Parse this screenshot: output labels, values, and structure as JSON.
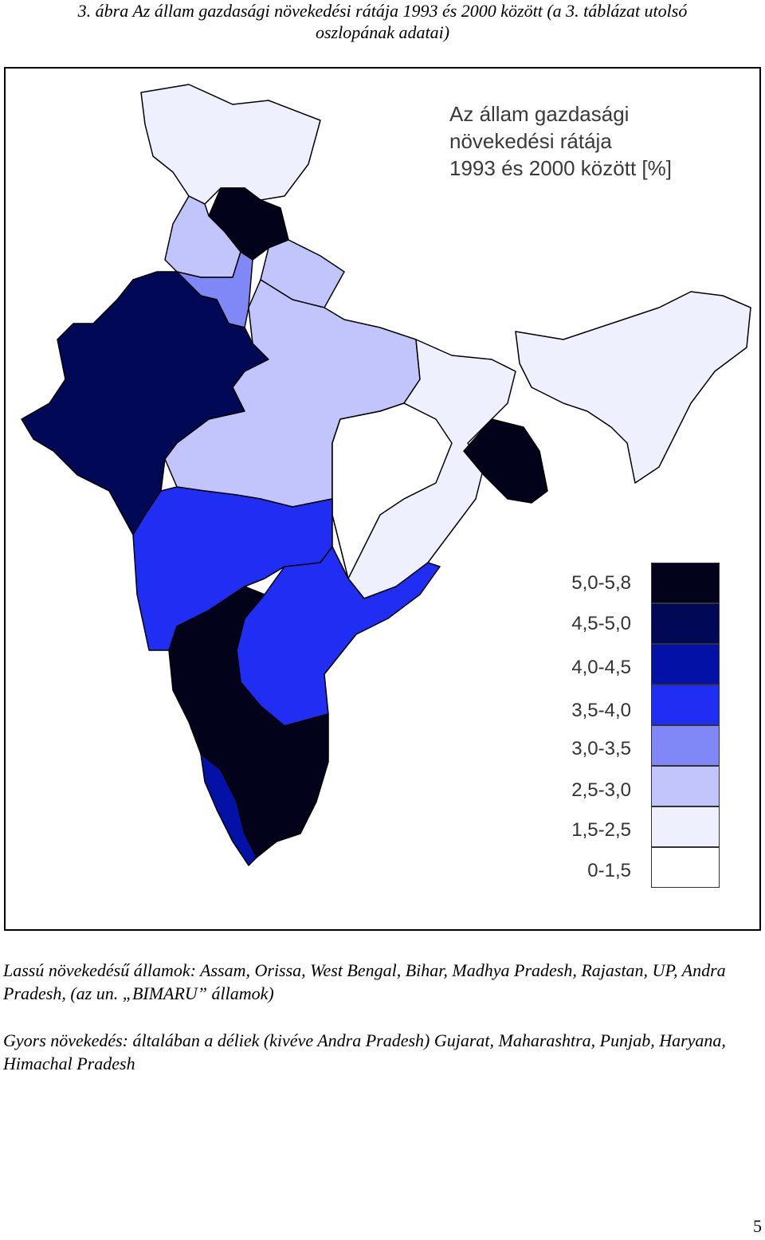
{
  "caption": {
    "line1": "3. ábra Az állam gazdasági növekedési rátája 1993 és 2000 között (a 3. táblázat utolsó",
    "line2": "oszlopának adatai)"
  },
  "map": {
    "title_lines": [
      "Az állam gazdasági",
      "növekedési rátája",
      "1993 és 2000 között [%]"
    ],
    "legend": [
      {
        "label": "5,0-5,8",
        "color": "#02021a"
      },
      {
        "label": "4,5-5,0",
        "color": "#010856"
      },
      {
        "label": "4,0-4,5",
        "color": "#0411a6"
      },
      {
        "label": "3,5-4,0",
        "color": "#1f2ef2"
      },
      {
        "label": "3,0-3,5",
        "color": "#8088f8"
      },
      {
        "label": "2,5-3,0",
        "color": "#c2c5fb"
      },
      {
        "label": "1,5-2,5",
        "color": "#eef0fd"
      },
      {
        "label": "0-1,5",
        "color": "#ffffff"
      }
    ]
  },
  "paragraphs": {
    "slow": "Lassú növekedésű államok: Assam, Orissa, West Bengal, Bihar, Madhya Pradesh, Rajastan, UP, Andra Pradesh, (az un. „BIMARU” államok)",
    "fast": "Gyors növekedés: általában a déliek (kivéve Andra Pradesh) Gujarat, Maharashtra, Punjab, Haryana, Himachal Pradesh"
  },
  "page_number": "5"
}
